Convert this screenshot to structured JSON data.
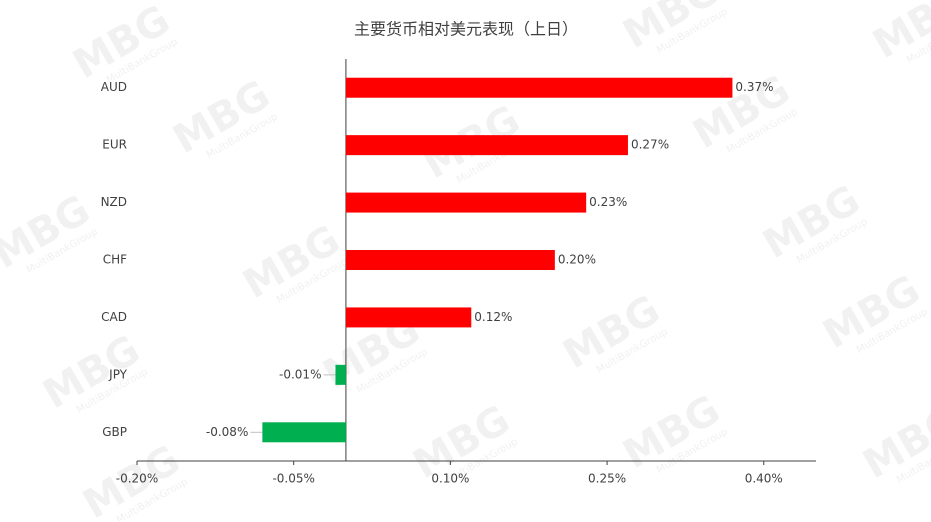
{
  "chart_data": {
    "type": "hbar",
    "title": "主要货币相对美元表现（上日）",
    "categories": [
      "AUD",
      "EUR",
      "NZD",
      "CHF",
      "CAD",
      "JPY",
      "GBP"
    ],
    "values": [
      0.37,
      0.27,
      0.23,
      0.2,
      0.12,
      -0.01,
      -0.08
    ],
    "value_labels": [
      "0.37%",
      "0.27%",
      "0.23%",
      "0.20%",
      "0.12%",
      "-0.01%",
      "-0.08%"
    ],
    "colors": [
      "#ff0000",
      "#ff0000",
      "#ff0000",
      "#ff0000",
      "#ff0000",
      "#00b050",
      "#00b050"
    ],
    "xlim": [
      -0.2,
      0.45
    ],
    "xticks": [
      {
        "value": -0.2,
        "label": "-0.20%"
      },
      {
        "value": -0.05,
        "label": "-0.05%"
      },
      {
        "value": 0.1,
        "label": "0.10%"
      },
      {
        "value": 0.25,
        "label": "0.25%"
      },
      {
        "value": 0.4,
        "label": "0.40%"
      }
    ],
    "grid": false,
    "watermark": "MBG",
    "watermark_sub": "MultiBankGroup"
  }
}
